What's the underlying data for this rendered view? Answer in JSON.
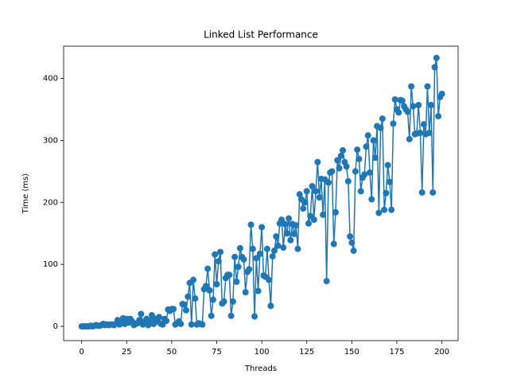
{
  "chart_data": {
    "type": "line",
    "title": "Linked List Performance",
    "x_label": "Threads",
    "y_label": "Time (ms)",
    "x": [
      0,
      1,
      2,
      3,
      4,
      5,
      6,
      7,
      8,
      9,
      10,
      11,
      12,
      13,
      14,
      15,
      16,
      17,
      18,
      19,
      20,
      21,
      22,
      23,
      24,
      25,
      26,
      27,
      28,
      29,
      30,
      31,
      32,
      33,
      34,
      35,
      36,
      37,
      38,
      39,
      40,
      41,
      42,
      43,
      44,
      45,
      46,
      47,
      48,
      49,
      50,
      51,
      52,
      53,
      54,
      55,
      56,
      57,
      58,
      59,
      60,
      61,
      62,
      63,
      64,
      65,
      66,
      67,
      68,
      69,
      70,
      71,
      72,
      73,
      74,
      75,
      76,
      77,
      78,
      79,
      80,
      81,
      82,
      83,
      84,
      85,
      86,
      87,
      88,
      89,
      90,
      91,
      92,
      93,
      94,
      95,
      96,
      97,
      98,
      99,
      100,
      101,
      102,
      103,
      104,
      105,
      106,
      107,
      108,
      109,
      110,
      111,
      112,
      113,
      114,
      115,
      116,
      117,
      118,
      119,
      120,
      121,
      122,
      123,
      124,
      125,
      126,
      127,
      128,
      129,
      130,
      131,
      132,
      133,
      134,
      135,
      136,
      137,
      138,
      139,
      140,
      141,
      142,
      143,
      144,
      145,
      146,
      147,
      148,
      149,
      150,
      151,
      152,
      153,
      154,
      155,
      156,
      157,
      158,
      159,
      160,
      161,
      162,
      163,
      164,
      165,
      166,
      167,
      168,
      169,
      170,
      171,
      172,
      173,
      174,
      175,
      176,
      177,
      178,
      179,
      180,
      181,
      182,
      183,
      184,
      185,
      186,
      187,
      188,
      189,
      190,
      191,
      192,
      193,
      194,
      195,
      196,
      197,
      198,
      199,
      200
    ],
    "series": [
      {
        "name": "Time",
        "color": "#1f77b4",
        "values": [
          0,
          0,
          0,
          0,
          0,
          1,
          0,
          1,
          2,
          1,
          1,
          2,
          4,
          2,
          3,
          2,
          3,
          3,
          2,
          4,
          10,
          3,
          5,
          13,
          4,
          12,
          6,
          12,
          8,
          2,
          4,
          5,
          10,
          20,
          3,
          8,
          12,
          2,
          9,
          18,
          4,
          12,
          8,
          15,
          4,
          3,
          12,
          9,
          27,
          25,
          28,
          28,
          3,
          5,
          8,
          4,
          36,
          35,
          26,
          48,
          70,
          3,
          75,
          45,
          3,
          5,
          4,
          3,
          60,
          65,
          93,
          58,
          17,
          43,
          116,
          68,
          105,
          120,
          37,
          40,
          78,
          83,
          83,
          17,
          40,
          112,
          72,
          96,
          126,
          112,
          108,
          55,
          88,
          92,
          164,
          125,
          16,
          110,
          57,
          117,
          160,
          82,
          80,
          125,
          75,
          33,
          113,
          122,
          145,
          130,
          166,
          172,
          127,
          165,
          150,
          174,
          139,
          165,
          149,
          163,
          125,
          213,
          205,
          190,
          200,
          218,
          166,
          178,
          226,
          172,
          218,
          265,
          208,
          238,
          180,
          237,
          73,
          232,
          248,
          250,
          133,
          184,
          268,
          255,
          275,
          284,
          265,
          258,
          234,
          145,
          135,
          122,
          250,
          285,
          270,
          218,
          240,
          245,
          290,
          308,
          248,
          205,
          300,
          272,
          323,
          183,
          320,
          335,
          188,
          215,
          260,
          233,
          188,
          327,
          366,
          350,
          345,
          365,
          364,
          355,
          350,
          346,
          302,
          387,
          355,
          310,
          311,
          357,
          312,
          216,
          326,
          310,
          387,
          312,
          357,
          216,
          418,
          433,
          339,
          370,
          375
        ]
      }
    ],
    "xlim": [
      -10,
      209
    ],
    "ylim": [
      -23,
      452
    ],
    "xticks": [
      0,
      25,
      50,
      75,
      100,
      125,
      150,
      175,
      200
    ],
    "yticks": [
      0,
      100,
      200,
      300,
      400
    ]
  }
}
